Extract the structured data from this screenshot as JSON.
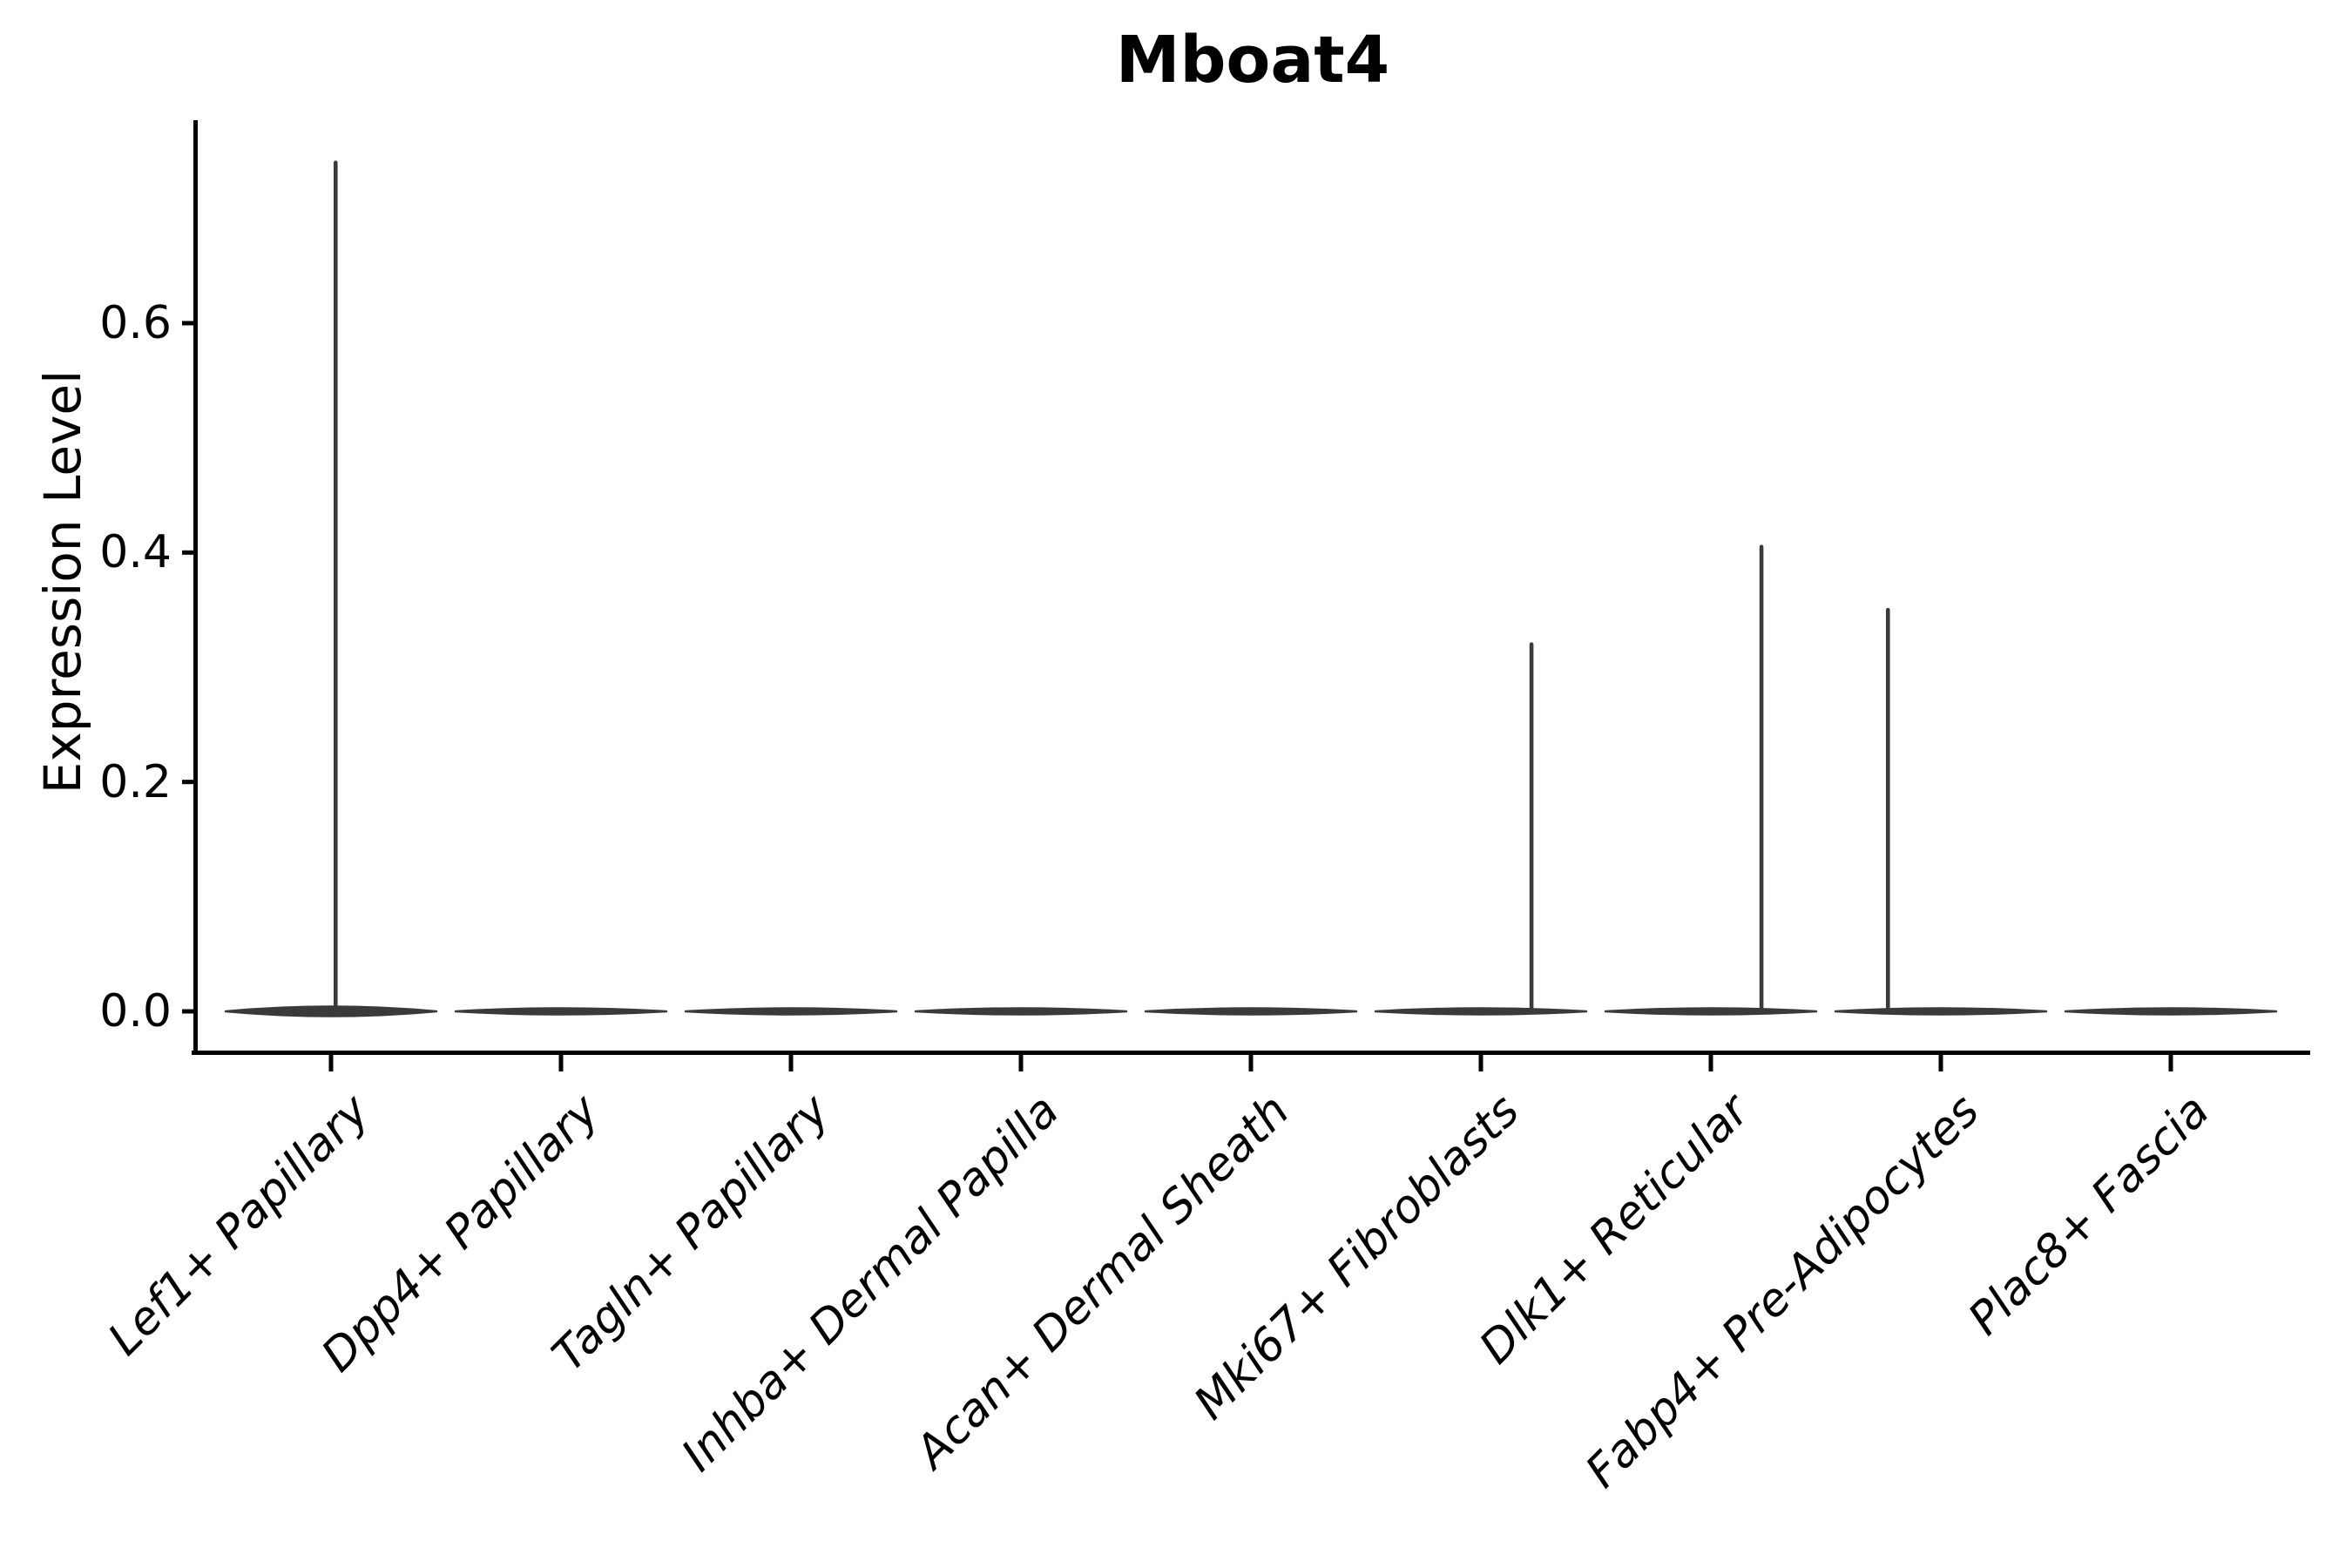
{
  "chart_data": {
    "type": "violin",
    "title": "Mboat4",
    "ylabel": "Expression Level",
    "xlabel": "",
    "grid": false,
    "legend": false,
    "y_tick_values": [
      0.0,
      0.2,
      0.4,
      0.6
    ],
    "y_tick_labels": [
      "0.0",
      "0.2",
      "0.4",
      "0.6"
    ],
    "ylim": [
      -0.034,
      0.776
    ],
    "categories": [
      "Lef1+ Papillary",
      "Dpp4+ Papillary",
      "Tagln+ Papillary",
      "Inhba+ Dermal Papilla",
      "Acan+ Dermal Sheath",
      "Mki67+ Fibroblasts",
      "Dlk1+ Reticular",
      "Fabp4+ Pre-Adipocytes",
      "Plac8+ Fascia"
    ],
    "violins": [
      {
        "category": "Lef1+ Papillary",
        "baseline_value": 0.0,
        "peak_value": 0.74,
        "spike_offset_frac": 0.02,
        "body_mid_thickness": 11
      },
      {
        "category": "Dpp4+ Papillary",
        "baseline_value": 0.0,
        "peak_value": 0.0,
        "spike_offset_frac": 0.0,
        "body_mid_thickness": 7
      },
      {
        "category": "Tagln+ Papillary",
        "baseline_value": 0.0,
        "peak_value": 0.0,
        "spike_offset_frac": 0.0,
        "body_mid_thickness": 7
      },
      {
        "category": "Inhba+ Dermal Papilla",
        "baseline_value": 0.0,
        "peak_value": 0.0,
        "spike_offset_frac": 0.0,
        "body_mid_thickness": 7
      },
      {
        "category": "Acan+ Dermal Sheath",
        "baseline_value": 0.0,
        "peak_value": 0.0,
        "spike_offset_frac": 0.0,
        "body_mid_thickness": 7
      },
      {
        "category": "Mki67+ Fibroblasts",
        "baseline_value": 0.0,
        "peak_value": 0.32,
        "spike_offset_frac": 0.22,
        "body_mid_thickness": 7
      },
      {
        "category": "Dlk1+ Reticular",
        "baseline_value": 0.0,
        "peak_value": 0.405,
        "spike_offset_frac": 0.22,
        "body_mid_thickness": 7
      },
      {
        "category": "Fabp4+ Pre-Adipocytes",
        "baseline_value": 0.0,
        "peak_value": 0.35,
        "spike_offset_frac": -0.23,
        "body_mid_thickness": 7
      },
      {
        "category": "Plac8+ Fascia",
        "baseline_value": 0.0,
        "peak_value": 0.0,
        "spike_offset_frac": 0.0,
        "body_mid_thickness": 7
      }
    ],
    "colors": {
      "violin": "#3a3a3a",
      "axis": "#000000",
      "text": "#000000",
      "background": "#ffffff"
    }
  }
}
